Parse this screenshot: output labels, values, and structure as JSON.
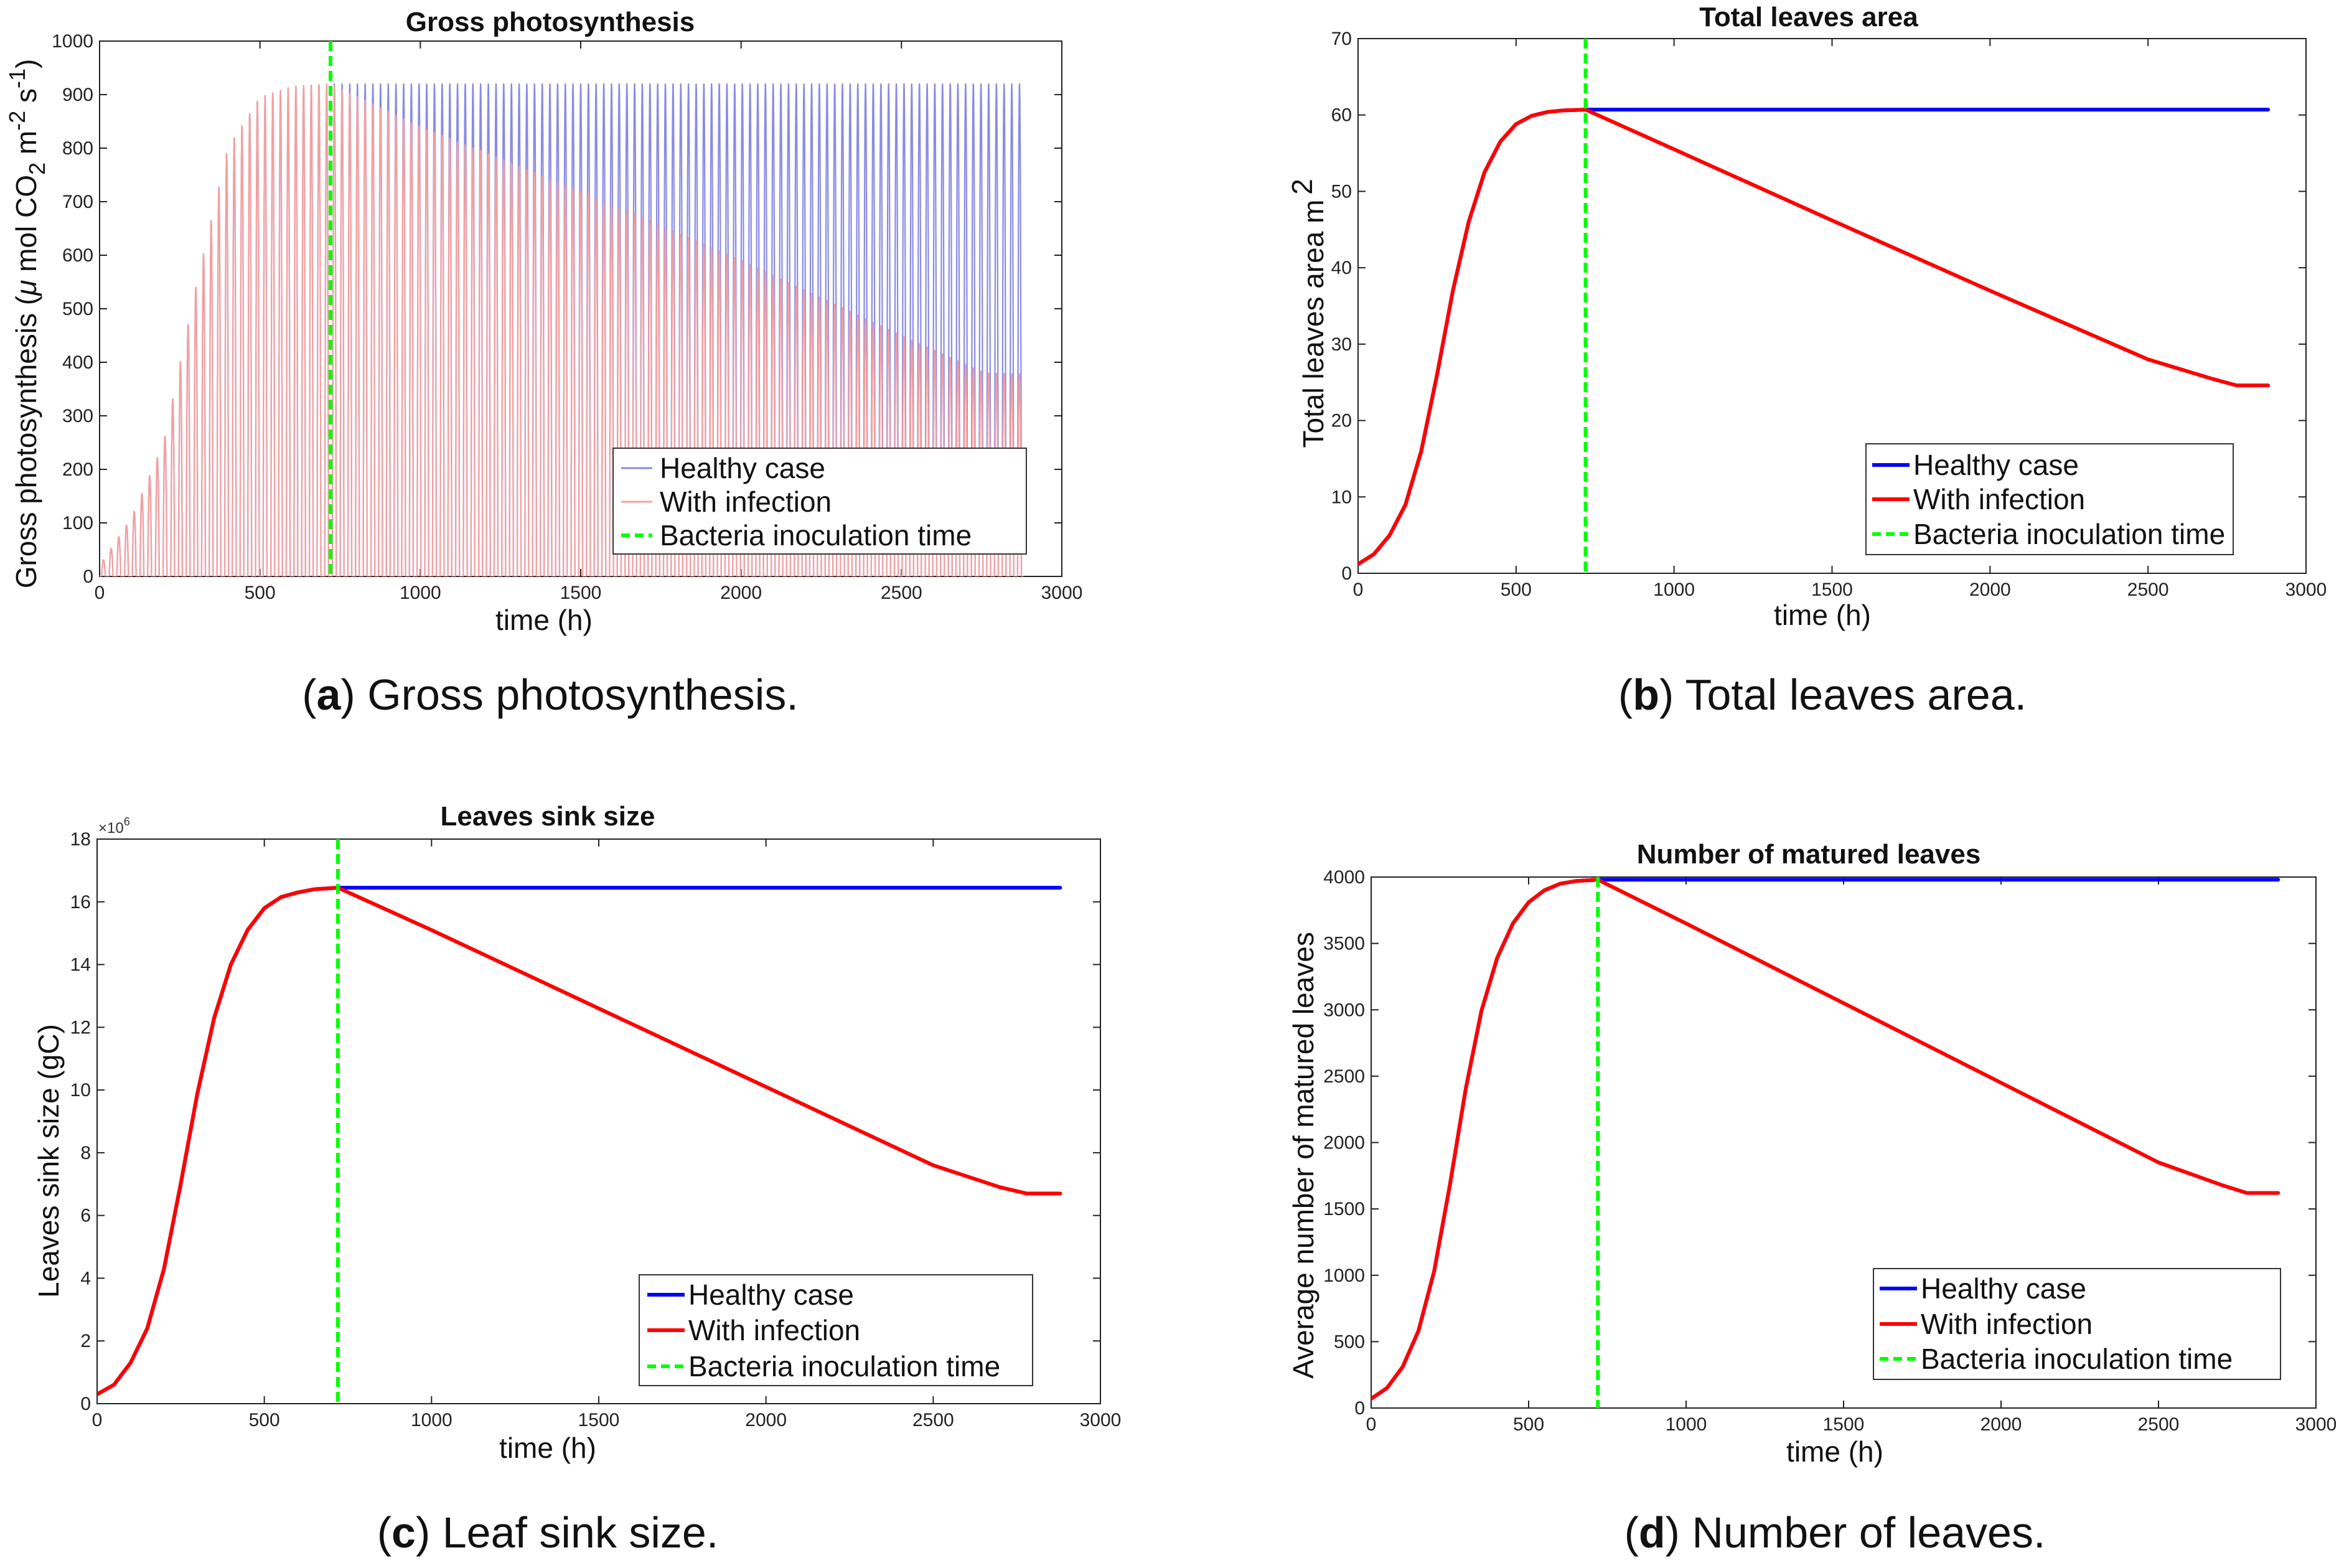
{
  "figure": {
    "legend": {
      "healthy": "Healthy case",
      "infection": "With infection",
      "inoculation": "Bacteria inoculation time"
    },
    "colors": {
      "healthy": "#0000ff",
      "infection": "#ff0000",
      "inoculation": "#00ff00",
      "healthy_light": "#8a8ae6",
      "infection_light": "#f4a0a0"
    },
    "inoculation_time": 720
  },
  "chart_data": [
    {
      "id": "a",
      "type": "line",
      "title": "Gross photosynthesis",
      "xlabel": "time (h)",
      "ylabel": {
        "main": "Gross photosynthesis (",
        "mu": "μ",
        "unit": " mol CO",
        "sub2": "2",
        "m": " m",
        "sup1": "-2",
        "s": " s",
        "sup2": "-1",
        "close": ")"
      },
      "xlim": [
        0,
        3000
      ],
      "ylim": [
        0,
        1000
      ],
      "xticks": [
        0,
        500,
        1000,
        1500,
        2000,
        2500,
        3000
      ],
      "yticks": [
        0,
        100,
        200,
        300,
        400,
        500,
        600,
        700,
        800,
        900,
        1000
      ],
      "caption": {
        "label": "a",
        "text": " Gross photosynthesis."
      },
      "series": [
        {
          "name": "Healthy case",
          "description": "diurnal oscillation, daily peaks",
          "x": [
            0,
            100,
            200,
            300,
            400,
            500,
            600,
            720,
            1000,
            1500,
            2000,
            2500,
            2880
          ],
          "peak": [
            20,
            110,
            250,
            540,
            800,
            895,
            915,
            920,
            920,
            920,
            920,
            920,
            920
          ]
        },
        {
          "name": "With infection",
          "description": "diurnal oscillation, daily peaks",
          "x": [
            0,
            100,
            200,
            300,
            400,
            500,
            600,
            720,
            1000,
            1500,
            2000,
            2500,
            2760,
            2880
          ],
          "peak": [
            20,
            110,
            250,
            540,
            800,
            895,
            915,
            920,
            840,
            720,
            590,
            450,
            380,
            378
          ]
        }
      ]
    },
    {
      "id": "b",
      "type": "line",
      "title": "Total leaves area",
      "xlabel": "time (h)",
      "ylabel": {
        "main": "Total leaves area m",
        "sup": "2"
      },
      "xlim": [
        0,
        3000
      ],
      "ylim": [
        0,
        70
      ],
      "xticks": [
        0,
        500,
        1000,
        1500,
        2000,
        2500,
        3000
      ],
      "yticks": [
        0,
        10,
        20,
        30,
        40,
        50,
        60,
        70
      ],
      "caption": {
        "label": "b",
        "text": " Total leaves area."
      },
      "series": [
        {
          "name": "Healthy case",
          "x": [
            0,
            50,
            100,
            150,
            200,
            250,
            300,
            350,
            400,
            450,
            500,
            550,
            600,
            650,
            720,
            2880
          ],
          "values": [
            1.2,
            2.5,
            5,
            9,
            16,
            26,
            37,
            46,
            52.5,
            56.5,
            58.8,
            59.9,
            60.4,
            60.6,
            60.7,
            60.7
          ]
        },
        {
          "name": "With infection",
          "x": [
            0,
            50,
            100,
            150,
            200,
            250,
            300,
            350,
            400,
            450,
            500,
            550,
            600,
            650,
            720,
            1000,
            1500,
            2000,
            2500,
            2700,
            2780,
            2880
          ],
          "values": [
            1.2,
            2.5,
            5,
            9,
            16,
            26,
            37,
            46,
            52.5,
            56.5,
            58.8,
            59.9,
            60.4,
            60.6,
            60.7,
            55.5,
            46.2,
            37,
            28,
            25.5,
            24.6,
            24.6
          ]
        }
      ]
    },
    {
      "id": "c",
      "type": "line",
      "title": "Leaves sink size",
      "xlabel": "time (h)",
      "ylabel": {
        "main": "Leaves sink size (gC)"
      },
      "multiplier": {
        "base": "×10",
        "exp": "6"
      },
      "xlim": [
        0,
        3000
      ],
      "ylim": [
        0,
        18
      ],
      "xticks": [
        0,
        500,
        1000,
        1500,
        2000,
        2500,
        3000
      ],
      "yticks": [
        0,
        2,
        4,
        6,
        8,
        10,
        12,
        14,
        16,
        18
      ],
      "caption": {
        "label": "c",
        "text": " Leaf sink size."
      },
      "series": [
        {
          "name": "Healthy case",
          "x": [
            0,
            50,
            100,
            150,
            200,
            250,
            300,
            350,
            400,
            450,
            500,
            550,
            600,
            650,
            720,
            2880
          ],
          "values": [
            0.3,
            0.6,
            1.3,
            2.4,
            4.3,
            7,
            9.9,
            12.3,
            14,
            15.1,
            15.8,
            16.15,
            16.3,
            16.4,
            16.45,
            16.45
          ]
        },
        {
          "name": "With infection",
          "x": [
            0,
            50,
            100,
            150,
            200,
            250,
            300,
            350,
            400,
            450,
            500,
            550,
            600,
            650,
            720,
            1000,
            1500,
            2000,
            2500,
            2700,
            2780,
            2880
          ],
          "values": [
            0.3,
            0.6,
            1.3,
            2.4,
            4.3,
            7,
            9.9,
            12.3,
            14,
            15.1,
            15.8,
            16.15,
            16.3,
            16.4,
            16.45,
            15.1,
            12.6,
            10.1,
            7.6,
            6.9,
            6.7,
            6.7
          ]
        }
      ]
    },
    {
      "id": "d",
      "type": "line",
      "title": "Number of matured leaves",
      "xlabel": "time (h)",
      "ylabel": {
        "main": "Average number of matured leaves"
      },
      "xlim": [
        0,
        3000
      ],
      "ylim": [
        0,
        4000
      ],
      "xticks": [
        0,
        500,
        1000,
        1500,
        2000,
        2500,
        3000
      ],
      "yticks": [
        0,
        500,
        1000,
        1500,
        2000,
        2500,
        3000,
        3500,
        4000
      ],
      "caption": {
        "label": "d",
        "text": " Number of leaves."
      },
      "series": [
        {
          "name": "Healthy case",
          "x": [
            0,
            50,
            100,
            150,
            200,
            250,
            300,
            350,
            400,
            450,
            500,
            550,
            600,
            650,
            720,
            2880
          ],
          "values": [
            70,
            150,
            310,
            580,
            1030,
            1680,
            2400,
            2990,
            3390,
            3650,
            3810,
            3900,
            3950,
            3970,
            3980,
            3980
          ]
        },
        {
          "name": "With infection",
          "x": [
            0,
            50,
            100,
            150,
            200,
            250,
            300,
            350,
            400,
            450,
            500,
            550,
            600,
            650,
            720,
            1000,
            1500,
            2000,
            2500,
            2700,
            2780,
            2880
          ],
          "values": [
            70,
            150,
            310,
            580,
            1030,
            1680,
            2400,
            2990,
            3390,
            3650,
            3810,
            3900,
            3950,
            3970,
            3980,
            3650,
            3050,
            2450,
            1850,
            1680,
            1620,
            1620
          ]
        }
      ]
    }
  ]
}
